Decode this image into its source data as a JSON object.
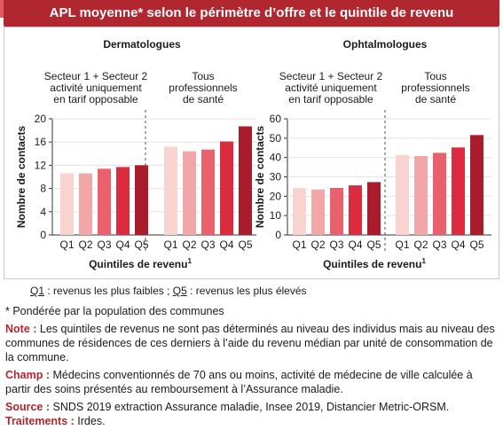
{
  "title": "APL moyenne* selon le périmètre d’offre et le quintile de revenu",
  "colors": {
    "title_bg": "#b0272f",
    "bars": [
      "#f9d3d0",
      "#f2a6a8",
      "#e8616c",
      "#db2b3e",
      "#a81c2c"
    ]
  },
  "chart_data": [
    {
      "type": "bar",
      "title": "Dermatologues",
      "ylabel": "Nombre de contacts",
      "xlabel": "Quintiles de revenu",
      "xlabel_sup": "1",
      "ylim": [
        0,
        20
      ],
      "yticks": [
        "0",
        "4",
        "8",
        "12",
        "16",
        "20"
      ],
      "categories": [
        "Q1",
        "Q2",
        "Q3",
        "Q4",
        "Q5"
      ],
      "groups": [
        {
          "label_lines": [
            "Secteur 1 + Secteur 2",
            "activité uniquement",
            "en tarif opposable"
          ],
          "values": [
            10.6,
            10.6,
            11.4,
            11.7,
            12.0
          ]
        },
        {
          "label_lines": [
            "Tous",
            "professionnels",
            "de santé"
          ],
          "values": [
            15.2,
            14.4,
            14.7,
            16.1,
            18.7
          ]
        }
      ]
    },
    {
      "type": "bar",
      "title": "Ophtalmologues",
      "ylabel": "Nombre de contacts",
      "xlabel": "Quintiles de revenu",
      "xlabel_sup": "1",
      "ylim": [
        0,
        60
      ],
      "yticks": [
        "0",
        "10",
        "20",
        "30",
        "40",
        "50",
        "60"
      ],
      "categories": [
        "Q1",
        "Q2",
        "Q3",
        "Q4",
        "Q5"
      ],
      "groups": [
        {
          "label_lines": [
            "Secteur 1 + Secteur 2",
            "activité uniquement",
            "en tarif opposable"
          ],
          "values": [
            24.2,
            23.5,
            24.3,
            25.6,
            27.3
          ]
        },
        {
          "label_lines": [
            "Tous",
            "professionnels",
            "de santé"
          ],
          "values": [
            41.3,
            40.8,
            42.4,
            45.2,
            51.6
          ]
        }
      ]
    }
  ],
  "legend_note": {
    "q1": "Q1",
    "q1_text": " : revenus les plus faibles ; ",
    "q5": "Q5",
    "q5_text": " : revenus les plus élevés"
  },
  "footnotes": {
    "weighted": "* Pondérée par la population des communes",
    "note_label": "Note :",
    "note_text": " Les quintiles de revenus ne sont pas déterminés au niveau des individus mais au niveau des communes de résidences de ces derniers à l’aide du revenu médian par unité de consommation de la commune.",
    "champ_label": "Champ :",
    "champ_text": " Médecins conventionnés de 70 ans ou moins, activité de médecine de ville calculée à partir des soins présentés au remboursement à l’Assurance maladie.",
    "source_label": "Source :",
    "source_text": " SNDS 2019 extraction Assurance maladie, Insee 2019, Distancier Metric-ORSM.",
    "traitements_label": "Traitements :",
    "traitements_text": " Irdes."
  }
}
